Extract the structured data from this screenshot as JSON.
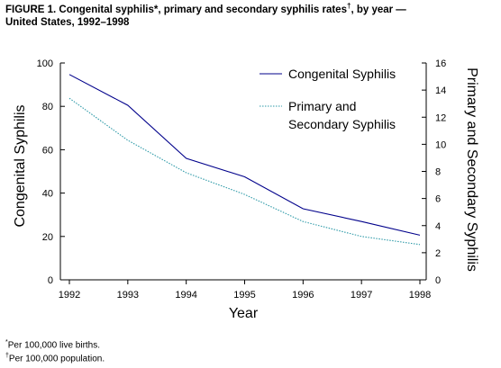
{
  "figure": {
    "title_main": "FIGURE 1. Congenital syphilis*, primary and secondary syphilis rates",
    "title_dagger": "†",
    "title_tail": ", by year —",
    "title_line2": "United States, 1992–1998"
  },
  "footnotes": {
    "f1_mark": "*",
    "f1_text": "Per 100,000 live births.",
    "f2_mark": "†",
    "f2_text": "Per 100,000 population."
  },
  "chart_data": {
    "type": "line",
    "x": [
      1992,
      1993,
      1994,
      1995,
      1996,
      1997,
      1998
    ],
    "xlabel": "Year",
    "y_left_label": "Congenital Syphilis",
    "y_right_label": "Primary and Secondary Syphilis",
    "y_left_range": [
      0,
      100
    ],
    "y_left_ticks": [
      0,
      20,
      40,
      60,
      80,
      100
    ],
    "y_right_range": [
      0,
      16
    ],
    "y_right_ticks": [
      0,
      2,
      4,
      6,
      8,
      10,
      12,
      14,
      16
    ],
    "grid": false,
    "legend_position": "top-right",
    "series": [
      {
        "name": "Congenital Syphilis",
        "axis": "left",
        "style": "solid",
        "color": "#00008b",
        "values": [
          94.7,
          80.5,
          56.0,
          47.5,
          32.8,
          26.9,
          20.6
        ]
      },
      {
        "name": "Primary and Secondary Syphilis",
        "legend_lines": [
          "Primary and",
          "Secondary Syphilis"
        ],
        "axis": "right",
        "style": "dotted",
        "color": "#2e9aa8",
        "values": [
          13.4,
          10.3,
          7.9,
          6.3,
          4.3,
          3.2,
          2.6
        ]
      }
    ]
  }
}
